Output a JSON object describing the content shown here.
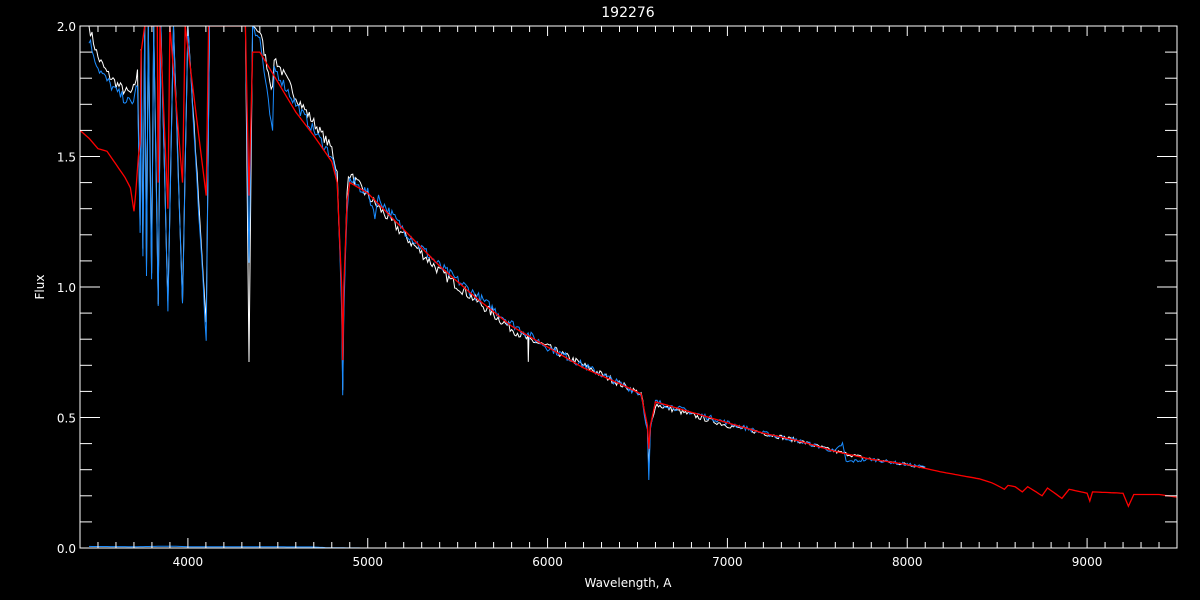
{
  "chart_data": {
    "type": "line",
    "title": "192276",
    "xlabel": "Wavelength, A",
    "ylabel": "Flux",
    "xlim": [
      3400,
      9500
    ],
    "ylim": [
      0.0,
      2.0
    ],
    "x_ticks": [
      4000,
      5000,
      6000,
      7000,
      8000,
      9000
    ],
    "y_ticks": [
      "0.0",
      "0.5",
      "1.0",
      "1.5",
      "2.0"
    ],
    "grid": false,
    "background": "#000000",
    "series": [
      {
        "color": "#ffffff",
        "points": [
          [
            3450,
            2.0
          ],
          [
            3500,
            1.88
          ],
          [
            3550,
            1.82
          ],
          [
            3600,
            1.78
          ],
          [
            3650,
            1.75
          ],
          [
            3690,
            1.74
          ],
          [
            3720,
            1.82
          ],
          [
            3734,
            1.25
          ],
          [
            3740,
            1.92
          ],
          [
            3750,
            1.15
          ],
          [
            3760,
            2.0
          ],
          [
            3770,
            1.08
          ],
          [
            3780,
            2.0
          ],
          [
            3798,
            1.05
          ],
          [
            3810,
            2.0
          ],
          [
            3835,
            0.95
          ],
          [
            3850,
            2.0
          ],
          [
            3889,
            0.93
          ],
          [
            3920,
            2.0
          ],
          [
            3970,
            0.95
          ],
          [
            4000,
            2.0
          ],
          [
            4102,
            0.85
          ],
          [
            4120,
            2.0
          ],
          [
            4320,
            2.0
          ],
          [
            4340,
            0.72
          ],
          [
            4360,
            2.0
          ],
          [
            4400,
            1.98
          ],
          [
            4471,
            1.75
          ],
          [
            4480,
            1.88
          ],
          [
            4600,
            1.73
          ],
          [
            4700,
            1.63
          ],
          [
            4800,
            1.53
          ],
          [
            4830,
            1.44
          ],
          [
            4855,
            0.95
          ],
          [
            4861,
            0.6
          ],
          [
            4867,
            0.95
          ],
          [
            4885,
            1.38
          ],
          [
            4900,
            1.43
          ],
          [
            5000,
            1.35
          ],
          [
            5200,
            1.2
          ],
          [
            5400,
            1.06
          ],
          [
            5600,
            0.95
          ],
          [
            5800,
            0.84
          ],
          [
            5890,
            0.8
          ],
          [
            5893,
            0.7
          ],
          [
            5896,
            0.8
          ],
          [
            6000,
            0.77
          ],
          [
            6200,
            0.7
          ],
          [
            6400,
            0.63
          ],
          [
            6520,
            0.59
          ],
          [
            6555,
            0.46
          ],
          [
            6563,
            0.3
          ],
          [
            6572,
            0.46
          ],
          [
            6600,
            0.55
          ],
          [
            6800,
            0.51
          ],
          [
            7000,
            0.47
          ],
          [
            7200,
            0.44
          ],
          [
            7400,
            0.41
          ],
          [
            7600,
            0.37
          ],
          [
            7800,
            0.34
          ],
          [
            8000,
            0.32
          ],
          [
            8100,
            0.31
          ]
        ]
      },
      {
        "color": "#1a8cff",
        "points": [
          [
            3450,
            1.95
          ],
          [
            3500,
            1.84
          ],
          [
            3550,
            1.79
          ],
          [
            3600,
            1.75
          ],
          [
            3650,
            1.72
          ],
          [
            3690,
            1.7
          ],
          [
            3720,
            1.78
          ],
          [
            3734,
            1.2
          ],
          [
            3740,
            1.9
          ],
          [
            3750,
            1.1
          ],
          [
            3760,
            2.0
          ],
          [
            3770,
            1.05
          ],
          [
            3780,
            2.0
          ],
          [
            3798,
            1.02
          ],
          [
            3810,
            2.0
          ],
          [
            3835,
            0.92
          ],
          [
            3850,
            2.0
          ],
          [
            3889,
            0.9
          ],
          [
            3920,
            2.0
          ],
          [
            3970,
            0.92
          ],
          [
            4000,
            2.0
          ],
          [
            4102,
            0.8
          ],
          [
            4120,
            2.0
          ],
          [
            4320,
            2.0
          ],
          [
            4340,
            1.1
          ],
          [
            4360,
            2.0
          ],
          [
            4400,
            1.95
          ],
          [
            4471,
            1.58
          ],
          [
            4480,
            1.84
          ],
          [
            4600,
            1.7
          ],
          [
            4700,
            1.6
          ],
          [
            4800,
            1.5
          ],
          [
            4830,
            1.41
          ],
          [
            4855,
            0.9
          ],
          [
            4861,
            0.58
          ],
          [
            4867,
            0.9
          ],
          [
            4885,
            1.3
          ],
          [
            4900,
            1.41
          ],
          [
            5000,
            1.36
          ],
          [
            5040,
            1.28
          ],
          [
            5060,
            1.34
          ],
          [
            5200,
            1.22
          ],
          [
            5400,
            1.08
          ],
          [
            5600,
            0.97
          ],
          [
            5800,
            0.86
          ],
          [
            6000,
            0.77
          ],
          [
            6200,
            0.7
          ],
          [
            6400,
            0.63
          ],
          [
            6520,
            0.59
          ],
          [
            6555,
            0.45
          ],
          [
            6563,
            0.26
          ],
          [
            6572,
            0.45
          ],
          [
            6600,
            0.56
          ],
          [
            6800,
            0.52
          ],
          [
            7000,
            0.48
          ],
          [
            7200,
            0.44
          ],
          [
            7400,
            0.41
          ],
          [
            7600,
            0.37
          ],
          [
            7640,
            0.4
          ],
          [
            7660,
            0.33
          ],
          [
            7800,
            0.34
          ],
          [
            8000,
            0.32
          ],
          [
            8100,
            0.31
          ]
        ]
      },
      {
        "color": "#ff0000",
        "points": [
          [
            3400,
            1.6
          ],
          [
            3450,
            1.57
          ],
          [
            3500,
            1.53
          ],
          [
            3550,
            1.52
          ],
          [
            3600,
            1.47
          ],
          [
            3650,
            1.42
          ],
          [
            3680,
            1.38
          ],
          [
            3700,
            1.29
          ],
          [
            3710,
            1.36
          ],
          [
            3725,
            1.5
          ],
          [
            3734,
            1.55
          ],
          [
            3740,
            1.9
          ],
          [
            3760,
            2.0
          ],
          [
            3830,
            2.0
          ],
          [
            3835,
            1.4
          ],
          [
            3845,
            2.0
          ],
          [
            3889,
            1.3
          ],
          [
            3900,
            2.0
          ],
          [
            3970,
            1.4
          ],
          [
            3985,
            2.0
          ],
          [
            4102,
            1.35
          ],
          [
            4115,
            2.0
          ],
          [
            4320,
            2.0
          ],
          [
            4340,
            1.35
          ],
          [
            4360,
            1.9
          ],
          [
            4400,
            1.9
          ],
          [
            4600,
            1.67
          ],
          [
            4700,
            1.58
          ],
          [
            4800,
            1.48
          ],
          [
            4830,
            1.4
          ],
          [
            4855,
            1.0
          ],
          [
            4861,
            0.72
          ],
          [
            4867,
            1.0
          ],
          [
            4885,
            1.33
          ],
          [
            4900,
            1.4
          ],
          [
            5000,
            1.36
          ],
          [
            5200,
            1.22
          ],
          [
            5400,
            1.08
          ],
          [
            5600,
            0.96
          ],
          [
            5800,
            0.85
          ],
          [
            6000,
            0.77
          ],
          [
            6200,
            0.69
          ],
          [
            6400,
            0.63
          ],
          [
            6520,
            0.59
          ],
          [
            6555,
            0.47
          ],
          [
            6563,
            0.38
          ],
          [
            6572,
            0.47
          ],
          [
            6600,
            0.56
          ],
          [
            6800,
            0.52
          ],
          [
            7000,
            0.48
          ],
          [
            7200,
            0.44
          ],
          [
            7400,
            0.41
          ],
          [
            7600,
            0.37
          ],
          [
            7800,
            0.34
          ],
          [
            8000,
            0.32
          ],
          [
            8200,
            0.29
          ],
          [
            8400,
            0.265
          ],
          [
            8470,
            0.25
          ],
          [
            8500,
            0.24
          ],
          [
            8540,
            0.225
          ],
          [
            8560,
            0.24
          ],
          [
            8600,
            0.235
          ],
          [
            8640,
            0.215
          ],
          [
            8670,
            0.235
          ],
          [
            8750,
            0.2
          ],
          [
            8780,
            0.23
          ],
          [
            8860,
            0.19
          ],
          [
            8900,
            0.225
          ],
          [
            9000,
            0.21
          ],
          [
            9015,
            0.18
          ],
          [
            9030,
            0.215
          ],
          [
            9200,
            0.21
          ],
          [
            9230,
            0.16
          ],
          [
            9260,
            0.205
          ],
          [
            9400,
            0.205
          ],
          [
            9500,
            0.195
          ]
        ]
      },
      {
        "color": "#1a8cff",
        "points": [
          [
            3450,
            0.006
          ],
          [
            3700,
            0.005
          ],
          [
            3900,
            0.007
          ],
          [
            4000,
            0.005
          ],
          [
            4300,
            0.005
          ],
          [
            4700,
            0.004
          ],
          [
            4780,
            0.001
          ],
          [
            5000,
            0.0
          ],
          [
            5500,
            -0.001
          ],
          [
            6500,
            -0.002
          ],
          [
            8100,
            -0.002
          ]
        ]
      }
    ]
  }
}
